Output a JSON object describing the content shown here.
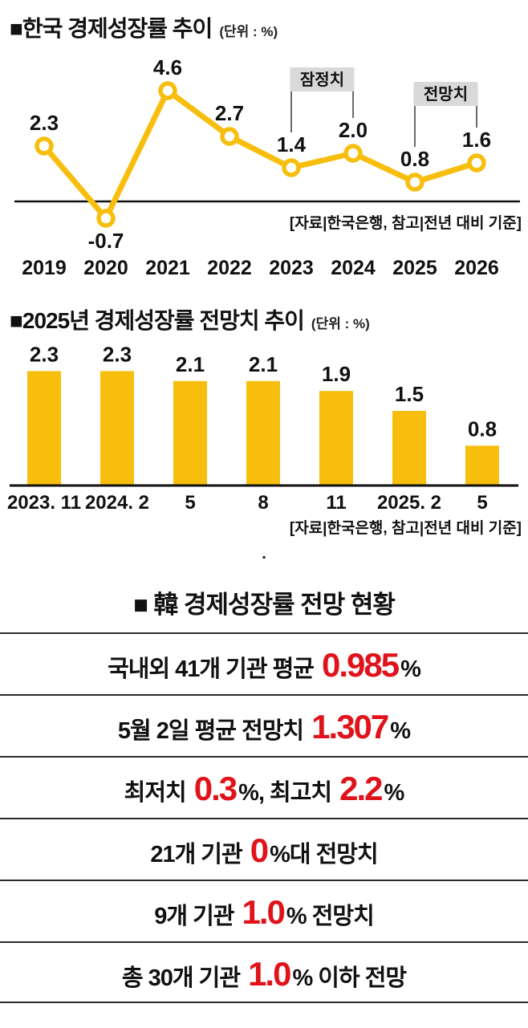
{
  "colors": {
    "accent_yellow": "#f8be0d",
    "highlight_red": "#e0131b",
    "axis_black": "#111111",
    "annotation_box_bg": "#d9d9d9"
  },
  "chart_data": [
    {
      "type": "line",
      "title": "■한국 경제성장률 추이",
      "unit_label": "(단위 : %)",
      "categories": [
        "2019",
        "2020",
        "2021",
        "2022",
        "2023",
        "2024",
        "2025",
        "2026"
      ],
      "values": [
        2.3,
        -0.7,
        4.6,
        2.7,
        1.4,
        2.0,
        0.8,
        1.6
      ],
      "value_labels": [
        "2.3",
        "-0.7",
        "4.6",
        "2.7",
        "1.4",
        "2.0",
        "0.8",
        "1.6"
      ],
      "ylim": [
        -1.2,
        5.0
      ],
      "grid": false,
      "annotations": [
        {
          "label": "잠정치",
          "target_categories": [
            "2023",
            "2024"
          ],
          "target_indexes": [
            4,
            5
          ]
        },
        {
          "label": "전망치",
          "target_categories": [
            "2025",
            "2026"
          ],
          "target_indexes": [
            6,
            7
          ]
        }
      ],
      "source_note": "[자료|한국은행, 참고|전년 대비 기준]"
    },
    {
      "type": "bar",
      "title": "■2025년 경제성장률 전망치 추이",
      "unit_label": "(단위 : %)",
      "categories": [
        "2023. 11",
        "2024. 2",
        "5",
        "8",
        "11",
        "2025. 2",
        "5"
      ],
      "values": [
        2.3,
        2.3,
        2.1,
        2.1,
        1.9,
        1.5,
        0.8
      ],
      "value_labels": [
        "2.3",
        "2.3",
        "2.1",
        "2.1",
        "1.9",
        "1.5",
        "0.8"
      ],
      "ylim": [
        0,
        2.6
      ],
      "grid": false,
      "source_note": "[자료|한국은행, 참고|전년 대비 기준]"
    }
  ],
  "divider_dot": ".",
  "summary_table": {
    "title": "■ 韓 경제성장률 전망 현황",
    "rows": [
      {
        "parts": [
          {
            "t": "국내외 41개 기관 평균 "
          },
          {
            "t": "0.985",
            "red": true
          },
          {
            "t": "%"
          }
        ]
      },
      {
        "parts": [
          {
            "t": "5월 2일 평균 전망치 "
          },
          {
            "t": "1.307",
            "red": true
          },
          {
            "t": "%"
          }
        ]
      },
      {
        "parts": [
          {
            "t": "최저치 "
          },
          {
            "t": "0.3",
            "red": true
          },
          {
            "t": "%, 최고치 "
          },
          {
            "t": "2.2",
            "red": true
          },
          {
            "t": "%"
          }
        ]
      },
      {
        "parts": [
          {
            "t": "21개 기관 "
          },
          {
            "t": "0",
            "red": true
          },
          {
            "t": "%대 전망치"
          }
        ]
      },
      {
        "parts": [
          {
            "t": "9개 기관 "
          },
          {
            "t": "1.0",
            "red": true
          },
          {
            "t": "% 전망치"
          }
        ]
      },
      {
        "parts": [
          {
            "t": "총 30개 기관 "
          },
          {
            "t": "1.0",
            "red": true
          },
          {
            "t": "% 이하 전망"
          }
        ]
      }
    ]
  }
}
